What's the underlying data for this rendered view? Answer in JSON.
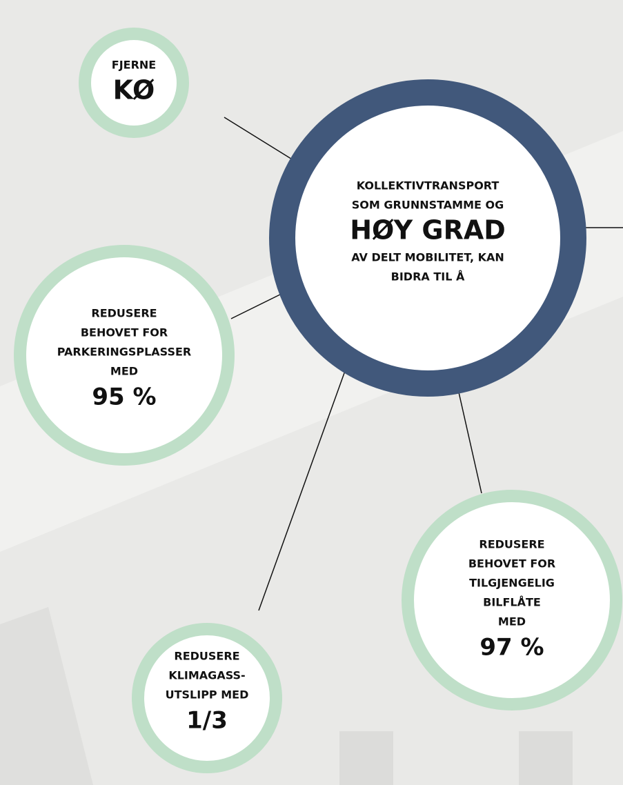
{
  "nodes": [
    {
      "small": [
        "FJERNE"
      ],
      "big": "KØ"
    },
    {
      "small": [
        "KOLLEKTIVTRANSPORT",
        "SOM GRUNNSTAMME OG"
      ],
      "big": "HØY GRAD",
      "after": [
        "AV DELT MOBILITET, KAN",
        "BIDRA TIL Å"
      ]
    },
    {
      "small": [
        "REDUSERE",
        "BEHOVET FOR",
        "PARKERINGSPLASSER",
        "MED"
      ],
      "big": "95 %"
    },
    {
      "small": [
        "REDUSERE",
        "KLIMAGASS-",
        "UTSLIPP MED"
      ],
      "big": "1/3"
    },
    {
      "small": [
        "REDUSERE",
        "BEHOVET FOR",
        "TILGJENGELIG",
        "BILFLÅTE",
        "MED"
      ],
      "big": "97 %"
    }
  ]
}
